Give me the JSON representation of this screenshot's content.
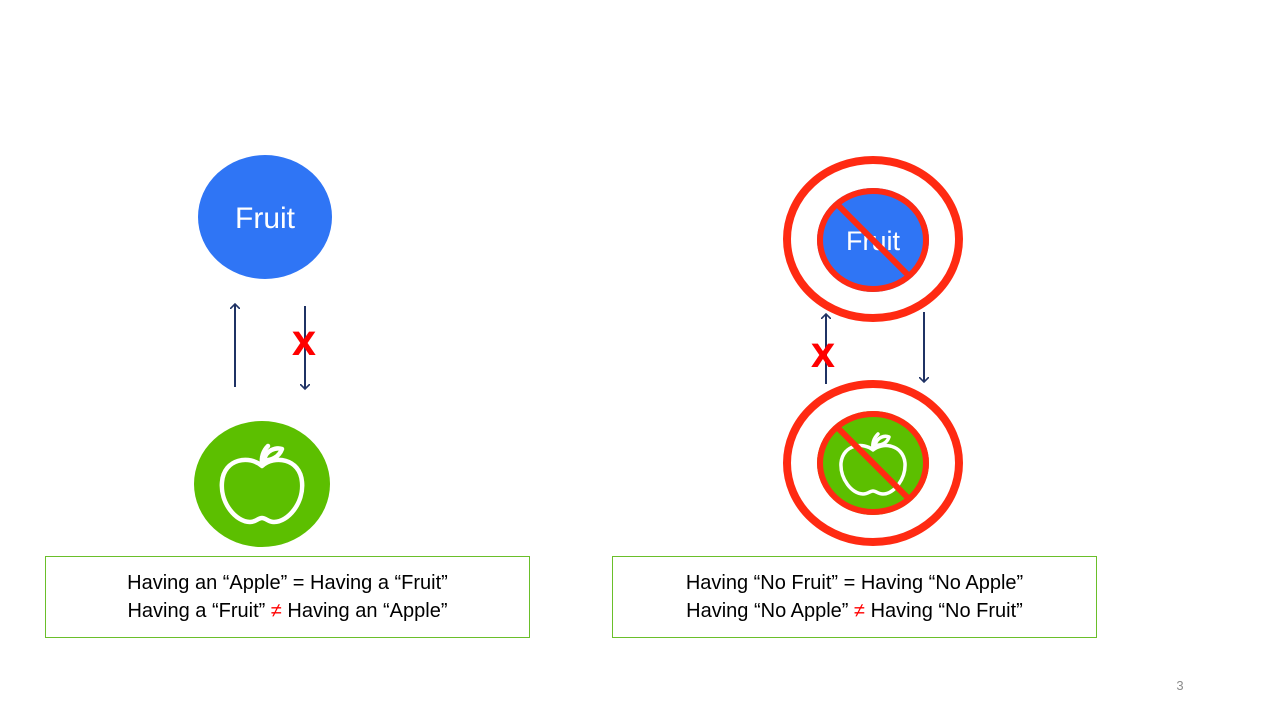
{
  "left": {
    "fruit_label": "Fruit",
    "cross_mark": "X",
    "caption": {
      "line1": "Having an “Apple” = Having a “Fruit”",
      "line2_a": "Having a “Fruit” ",
      "neq": "≠",
      "line2_b": " Having an “Apple”"
    }
  },
  "right": {
    "fruit_label": "Fruit",
    "cross_mark": "X",
    "caption": {
      "line1": "Having “No Fruit” = Having “No Apple”",
      "line2_a": "Having “No Apple” ",
      "neq": "≠",
      "line2_b": " Having “No Fruit”"
    }
  },
  "page_number": "3",
  "colors": {
    "fruit_blue": "#2f75f5",
    "apple_green": "#5cbf00",
    "arrow_navy": "#1f3264",
    "forbid_red": "#ff2a12",
    "box_border": "#6abf2a",
    "neq_red": "#ff0000"
  },
  "icons": [
    "apple-icon",
    "prohibition-icon",
    "up-arrow-icon",
    "down-arrow-icon"
  ]
}
